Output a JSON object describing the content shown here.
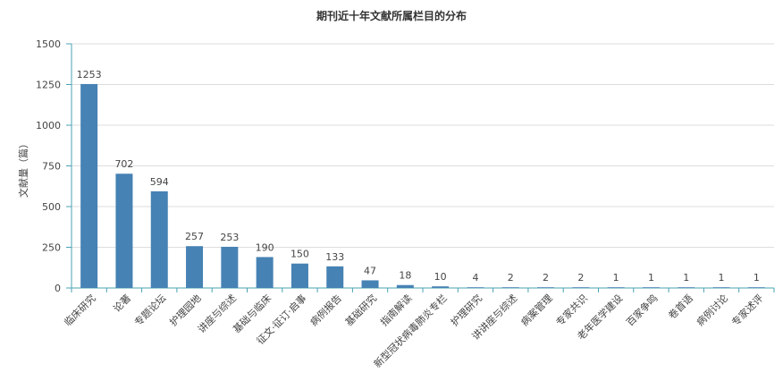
{
  "chart_data": {
    "type": "bar",
    "title": "期刊近十年文献所属栏目的分布",
    "ylabel": "文献量（篇）",
    "xlabel": "",
    "ylim": [
      0,
      1500
    ],
    "yticks": [
      0,
      250,
      500,
      750,
      1000,
      1250,
      1500
    ],
    "grid": true,
    "bar_color": "#4682b4",
    "categories": [
      "临床研究",
      "论著",
      "专题论坛",
      "护理园地",
      "讲座与综述",
      "基础与临床",
      "征文·征订·启事",
      "病例报告",
      "基础研究",
      "指南解读",
      "新型冠状病毒肺炎专栏",
      "护理研究",
      "讲讲座与综述",
      "病案管理",
      "专家共识",
      "老年医学建设",
      "百家争鸣",
      "卷首语",
      "病例讨论",
      "专家述评"
    ],
    "values": [
      1253,
      702,
      594,
      257,
      253,
      190,
      150,
      133,
      47,
      18,
      10,
      4,
      2,
      2,
      2,
      1,
      1,
      1,
      1,
      1
    ]
  }
}
